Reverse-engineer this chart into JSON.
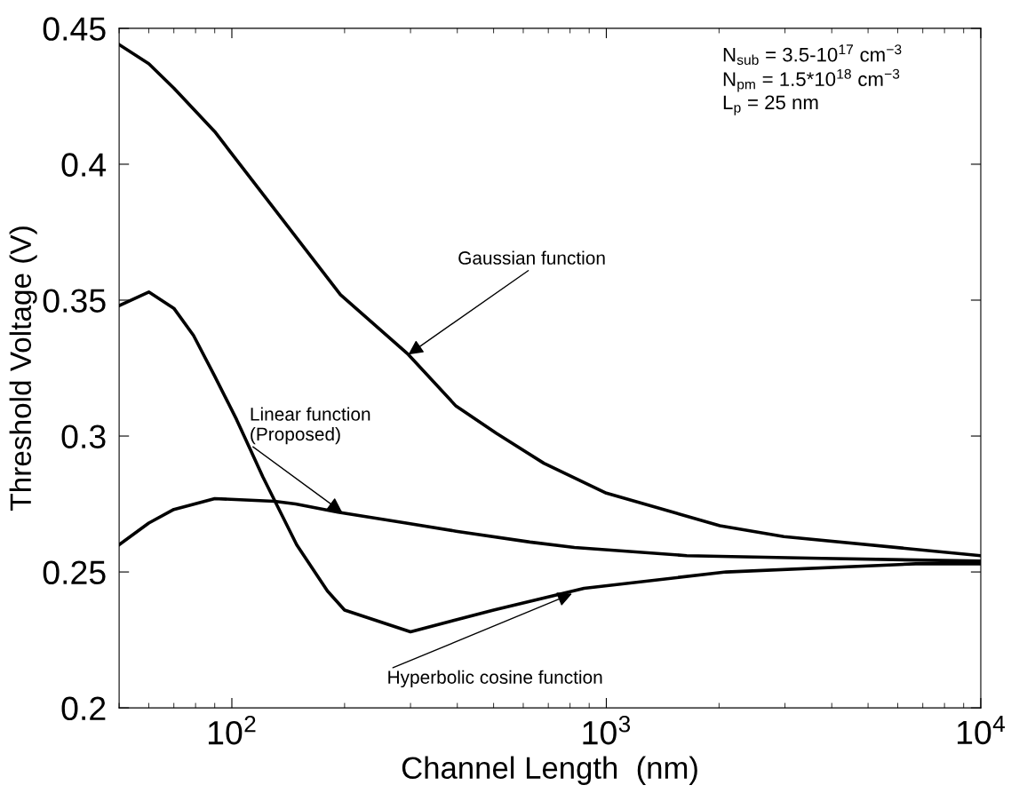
{
  "chart_data": {
    "type": "line",
    "xlabel": "Channel Length  (nm)",
    "ylabel": "Threshold Voltage (V)",
    "log": "x",
    "xlim": [
      50,
      10000
    ],
    "ylim": [
      0.2,
      0.45
    ],
    "xticks": [
      {
        "value": 100,
        "label": "10$^{2}$"
      },
      {
        "value": 1000,
        "label": "10$^{3}$"
      },
      {
        "value": 10000,
        "label": "10$^{4}$"
      }
    ],
    "yticks": [
      0.2,
      0.25,
      0.3,
      0.35,
      0.4,
      0.45
    ],
    "marker": "none",
    "line_style": "solid",
    "series": [
      {
        "color": "#000000",
        "x": [
          50,
          60,
          70,
          90,
          195,
          296,
          397,
          509,
          681,
          1000,
          2010,
          2980,
          10000
        ],
        "values": [
          0.444,
          0.437,
          0.428,
          0.412,
          0.352,
          0.33,
          0.311,
          0.301,
          0.29,
          0.279,
          0.267,
          0.263,
          0.256
        ]
      },
      {
        "color": "#000000",
        "x": [
          50,
          60,
          70,
          90,
          130,
          148,
          192,
          292,
          397,
          625,
          822,
          1640,
          3760,
          10000
        ],
        "values": [
          0.26,
          0.268,
          0.273,
          0.277,
          0.276,
          0.275,
          0.272,
          0.268,
          0.265,
          0.261,
          0.259,
          0.256,
          0.255,
          0.254
        ]
      },
      {
        "color": "#000000",
        "x": [
          50,
          60,
          70,
          79,
          90,
          103,
          121,
          149,
          180,
          200,
          300,
          500,
          872,
          2090,
          6700,
          10000
        ],
        "values": [
          0.348,
          0.353,
          0.347,
          0.337,
          0.322,
          0.306,
          0.285,
          0.26,
          0.243,
          0.236,
          0.228,
          0.236,
          0.244,
          0.25,
          0.253,
          0.253
        ]
      }
    ],
    "annotations": [
      {
        "text": "Gaussian function",
        "x": 296,
        "y": 0.33
      },
      {
        "text": "Linear function\n(Proposed)",
        "x": 197,
        "y": 0.272
      },
      {
        "text": "Hyperbolic cosine function",
        "x": 810,
        "y": 0.242
      },
      "N$_{sub}$ = 3.5-10$^{17}$ cm$^{−3}$\nN$_{pm}$ = 1.5*10$^{18}$ cm$^{−3}$\nL$_{p}$ = 25 nm"
    ]
  }
}
